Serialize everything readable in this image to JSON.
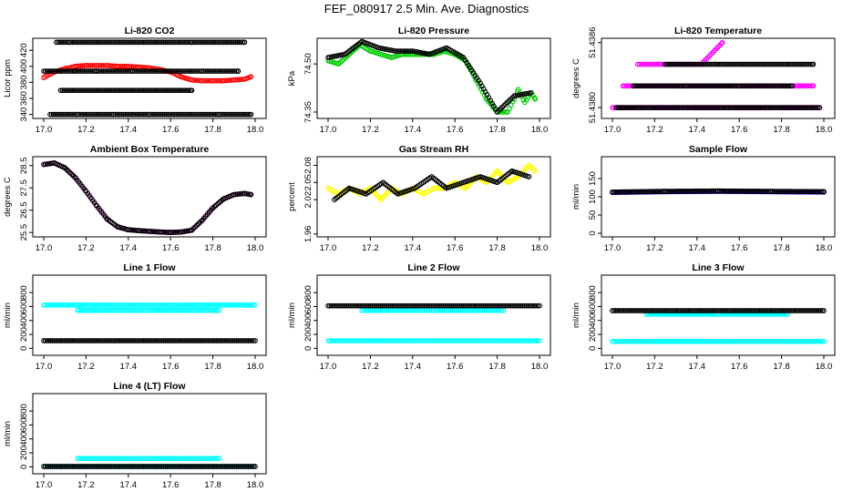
{
  "figure_title": "FEF_080917  2.5 Min. Ave. Diagnostics",
  "chart_data": [
    {
      "type": "scatter",
      "title": "Li-820 CO2",
      "ylabel": "Licor ppm",
      "xlim": [
        17.0,
        18.0
      ],
      "ylim": [
        335,
        435
      ],
      "xticks": [
        "17.0",
        "17.2",
        "17.4",
        "17.6",
        "17.8",
        "18.0"
      ],
      "yticks": [
        {
          "v": 340,
          "t": "340"
        },
        {
          "v": 360,
          "t": "360"
        },
        {
          "v": 380,
          "t": "380"
        },
        {
          "v": 400,
          "t": "400"
        },
        {
          "v": 420,
          "t": "420"
        }
      ],
      "series": [
        {
          "color": "#ff0000",
          "x": [
            17.0,
            17.05,
            17.1,
            17.15,
            17.2,
            17.25,
            17.3,
            17.35,
            17.4,
            17.45,
            17.5,
            17.55,
            17.6,
            17.65,
            17.7,
            17.75,
            17.8,
            17.85,
            17.9,
            17.95,
            17.98
          ],
          "y": [
            386,
            393,
            397,
            400,
            401,
            401,
            401,
            400,
            400,
            399,
            398,
            396,
            393,
            387,
            383,
            382,
            382,
            382,
            383,
            384,
            387
          ]
        },
        {
          "color": "#000000",
          "x": [
            17.06,
            17.12,
            17.2,
            17.28,
            17.36,
            17.44,
            17.52,
            17.6,
            17.7,
            17.78,
            17.86,
            17.95,
            17.03,
            17.16,
            17.33,
            17.5,
            17.66,
            17.83,
            17.98,
            17.0,
            17.15,
            17.25,
            17.42,
            17.58,
            17.75,
            17.92,
            17.08,
            17.4,
            17.7
          ],
          "y": [
            430,
            430,
            430,
            430,
            430,
            430,
            430,
            430,
            430,
            430,
            430,
            430,
            340,
            340,
            340,
            340,
            340,
            340,
            340,
            394,
            394,
            394,
            394,
            394,
            394,
            394,
            370,
            370,
            370
          ]
        }
      ]
    },
    {
      "type": "scatter",
      "title": "Li-820 Pressure",
      "ylabel": "kPa",
      "xlim": [
        17.0,
        18.0
      ],
      "ylim": [
        74.33,
        74.58
      ],
      "xticks": [
        "17.0",
        "17.2",
        "17.4",
        "17.6",
        "17.8",
        "18.0"
      ],
      "yticks": [
        {
          "v": 74.35,
          "t": "74.35"
        },
        {
          "v": 74.5,
          "t": "74.50"
        }
      ],
      "series": [
        {
          "color": "#00cc00",
          "x": [
            17.0,
            17.05,
            17.1,
            17.15,
            17.2,
            17.25,
            17.3,
            17.35,
            17.4,
            17.45,
            17.5,
            17.55,
            17.6,
            17.65,
            17.7,
            17.75,
            17.8,
            17.85,
            17.88,
            17.9,
            17.93,
            17.96,
            17.98
          ],
          "y": [
            74.51,
            74.5,
            74.53,
            74.56,
            74.54,
            74.53,
            74.52,
            74.53,
            74.53,
            74.53,
            74.53,
            74.54,
            74.53,
            74.51,
            74.45,
            74.39,
            74.35,
            74.35,
            74.39,
            74.42,
            74.38,
            74.41,
            74.39
          ]
        },
        {
          "color": "#000000",
          "x": [
            17.0,
            17.08,
            17.16,
            17.24,
            17.32,
            17.4,
            17.48,
            17.56,
            17.64,
            17.72,
            17.8,
            17.88,
            17.96
          ],
          "y": [
            74.52,
            74.53,
            74.57,
            74.55,
            74.54,
            74.54,
            74.53,
            74.55,
            74.52,
            74.44,
            74.35,
            74.4,
            74.41
          ]
        }
      ]
    },
    {
      "type": "scatter",
      "title": "Li-820 Temperature",
      "ylabel": "degrees C",
      "xlim": [
        17.0,
        18.0
      ],
      "ylim": [
        51.4379,
        51.43864
      ],
      "xticks": [
        "17.0",
        "17.2",
        "17.4",
        "17.6",
        "17.8",
        "18.0"
      ],
      "yticks": [
        {
          "v": 51.438,
          "t": "51.4380"
        },
        {
          "v": 51.4386,
          "t": "51.4386"
        }
      ],
      "series": [
        {
          "color": "#ff00ff",
          "x": [
            17.0,
            17.1,
            17.2,
            17.3,
            17.4,
            17.5,
            17.6,
            17.7,
            17.8,
            17.9,
            17.98,
            17.05,
            17.3,
            17.45,
            17.55,
            17.65,
            17.72,
            17.85,
            17.95,
            17.12,
            17.42,
            17.52
          ],
          "y": [
            51.438,
            51.438,
            51.438,
            51.438,
            51.438,
            51.438,
            51.438,
            51.438,
            51.438,
            51.438,
            51.438,
            51.4382,
            51.4382,
            51.4382,
            51.4382,
            51.4382,
            51.4382,
            51.4382,
            51.4382,
            51.4384,
            51.4384,
            51.4386
          ]
        },
        {
          "color": "#000000",
          "x": [
            17.02,
            17.14,
            17.26,
            17.38,
            17.5,
            17.62,
            17.74,
            17.86,
            17.98,
            17.1,
            17.35,
            17.6,
            17.85,
            17.25,
            17.95
          ],
          "y": [
            51.438,
            51.438,
            51.438,
            51.438,
            51.438,
            51.438,
            51.438,
            51.438,
            51.438,
            51.4382,
            51.4382,
            51.4382,
            51.4382,
            51.4384,
            51.4384
          ]
        }
      ]
    },
    {
      "type": "scatter",
      "title": "Ambient Box Temperature",
      "ylabel": "degrees C",
      "xlim": [
        17.0,
        18.0
      ],
      "ylim": [
        25.3,
        28.9
      ],
      "xticks": [
        "17.0",
        "17.2",
        "17.4",
        "17.6",
        "17.8",
        "18.0"
      ],
      "yticks": [
        {
          "v": 25.5,
          "t": "25.5"
        },
        {
          "v": 26.5,
          "t": "26.5"
        },
        {
          "v": 27.5,
          "t": "27.5"
        },
        {
          "v": 28.5,
          "t": "28.5"
        }
      ],
      "series": [
        {
          "color": "#ff00ff",
          "x": [
            17.0,
            17.05,
            17.1,
            17.15,
            17.2,
            17.25,
            17.3,
            17.35,
            17.4,
            17.45,
            17.5,
            17.55,
            17.6,
            17.65,
            17.7,
            17.75,
            17.8,
            17.85,
            17.9,
            17.95,
            17.98
          ],
          "y": [
            28.55,
            28.62,
            28.4,
            27.95,
            27.35,
            26.7,
            26.1,
            25.75,
            25.62,
            25.58,
            25.55,
            25.52,
            25.5,
            25.52,
            25.6,
            26.05,
            26.6,
            27.0,
            27.2,
            27.25,
            27.2
          ]
        },
        {
          "color": "#000000",
          "x": [
            17.0,
            17.05,
            17.1,
            17.15,
            17.2,
            17.25,
            17.3,
            17.35,
            17.4,
            17.45,
            17.5,
            17.55,
            17.6,
            17.65,
            17.7,
            17.75,
            17.8,
            17.85,
            17.9,
            17.95,
            17.98
          ],
          "y": [
            28.55,
            28.62,
            28.4,
            27.95,
            27.35,
            26.7,
            26.1,
            25.75,
            25.62,
            25.58,
            25.55,
            25.52,
            25.5,
            25.52,
            25.6,
            26.05,
            26.6,
            27.0,
            27.2,
            27.25,
            27.2
          ]
        }
      ]
    },
    {
      "type": "scatter",
      "title": "Gas Stream RH",
      "ylabel": "percent",
      "xlim": [
        17.0,
        18.0
      ],
      "ylim": [
        1.955,
        2.095
      ],
      "xticks": [
        "17.0",
        "17.2",
        "17.4",
        "17.6",
        "17.8",
        "18.0"
      ],
      "yticks": [
        {
          "v": 1.96,
          "t": "1.96"
        },
        {
          "v": 2.02,
          "t": "2.02"
        },
        {
          "v": 2.05,
          "t": "2.05"
        },
        {
          "v": 2.08,
          "t": "2.08"
        }
      ],
      "series": [
        {
          "color": "#ffff00",
          "x": [
            17.0,
            17.05,
            17.1,
            17.15,
            17.2,
            17.25,
            17.3,
            17.35,
            17.4,
            17.45,
            17.5,
            17.55,
            17.6,
            17.65,
            17.7,
            17.75,
            17.8,
            17.85,
            17.9,
            17.95,
            17.98
          ],
          "y": [
            2.04,
            2.03,
            2.04,
            2.03,
            2.04,
            2.02,
            2.04,
            2.03,
            2.04,
            2.03,
            2.04,
            2.04,
            2.05,
            2.04,
            2.06,
            2.05,
            2.07,
            2.05,
            2.06,
            2.08,
            2.07
          ]
        },
        {
          "color": "#000000",
          "x": [
            17.03,
            17.1,
            17.18,
            17.26,
            17.33,
            17.41,
            17.49,
            17.56,
            17.64,
            17.72,
            17.8,
            17.87,
            17.95
          ],
          "y": [
            2.02,
            2.04,
            2.03,
            2.05,
            2.03,
            2.04,
            2.06,
            2.04,
            2.05,
            2.06,
            2.05,
            2.07,
            2.06
          ]
        }
      ]
    },
    {
      "type": "scatter",
      "title": "Sample Flow",
      "ylabel": "ml/min",
      "xlim": [
        17.0,
        18.0
      ],
      "ylim": [
        -10,
        210
      ],
      "xticks": [
        "17.0",
        "17.2",
        "17.4",
        "17.6",
        "17.8",
        "18.0"
      ],
      "yticks": [
        {
          "v": 0,
          "t": "0"
        },
        {
          "v": 50,
          "t": "50"
        },
        {
          "v": 100,
          "t": "100"
        },
        {
          "v": 150,
          "t": "150"
        }
      ],
      "series": [
        {
          "color": "#0000ff",
          "x": [
            17.0,
            17.25,
            17.5,
            17.75,
            18.0
          ],
          "y": [
            112,
            114,
            115,
            114,
            113
          ]
        },
        {
          "color": "#000000",
          "x": [
            17.0,
            17.25,
            17.5,
            17.75,
            18.0
          ],
          "y": [
            113,
            115,
            116,
            115,
            114
          ]
        }
      ]
    },
    {
      "type": "scatter",
      "title": "Line 1 Flow",
      "ylabel": "ml/min",
      "xlim": [
        17.0,
        18.0
      ],
      "ylim": [
        -100,
        1050
      ],
      "xticks": [
        "17.0",
        "17.2",
        "17.4",
        "17.6",
        "17.8",
        "18.0"
      ],
      "yticks": [
        {
          "v": 0,
          "t": "0"
        },
        {
          "v": 200,
          "t": "200"
        },
        {
          "v": 400,
          "t": "400"
        },
        {
          "v": 600,
          "t": "600"
        },
        {
          "v": 800,
          "t": "800"
        }
      ],
      "series": [
        {
          "color": "#00ffff",
          "x": [
            17.0,
            18.0,
            17.16,
            17.5,
            17.83
          ],
          "y": [
            620,
            620,
            545,
            545,
            545
          ]
        },
        {
          "color": "#000000",
          "x": [
            17.0,
            18.0
          ],
          "y": [
            110,
            110
          ]
        }
      ]
    },
    {
      "type": "scatter",
      "title": "Line 2 Flow",
      "ylabel": "ml/min",
      "xlim": [
        17.0,
        18.0
      ],
      "ylim": [
        -100,
        1050
      ],
      "xticks": [
        "17.0",
        "17.2",
        "17.4",
        "17.6",
        "17.8",
        "18.0"
      ],
      "yticks": [
        {
          "v": 0,
          "t": "0"
        },
        {
          "v": 200,
          "t": "200"
        },
        {
          "v": 400,
          "t": "400"
        },
        {
          "v": 600,
          "t": "600"
        },
        {
          "v": 800,
          "t": "800"
        }
      ],
      "series": [
        {
          "color": "#00ffff",
          "x": [
            17.0,
            18.0,
            17.16,
            17.5,
            17.83
          ],
          "y": [
            110,
            110,
            545,
            545,
            545
          ]
        },
        {
          "color": "#000000",
          "x": [
            17.0,
            18.0
          ],
          "y": [
            610,
            610
          ]
        }
      ]
    },
    {
      "type": "scatter",
      "title": "Line 3 Flow",
      "ylabel": "ml/min",
      "xlim": [
        17.0,
        18.0
      ],
      "ylim": [
        -100,
        1050
      ],
      "xticks": [
        "17.0",
        "17.2",
        "17.4",
        "17.6",
        "17.8",
        "18.0"
      ],
      "yticks": [
        {
          "v": 0,
          "t": "0"
        },
        {
          "v": 200,
          "t": "200"
        },
        {
          "v": 400,
          "t": "400"
        },
        {
          "v": 600,
          "t": "600"
        },
        {
          "v": 800,
          "t": "800"
        }
      ],
      "series": [
        {
          "color": "#00ffff",
          "x": [
            17.0,
            18.0,
            17.16,
            17.5,
            17.83
          ],
          "y": [
            100,
            100,
            490,
            490,
            490
          ]
        },
        {
          "color": "#000000",
          "x": [
            17.0,
            18.0
          ],
          "y": [
            540,
            540
          ]
        }
      ]
    },
    {
      "type": "scatter",
      "title": "Line 4 (LT) Flow",
      "ylabel": "ml/min",
      "xlim": [
        17.0,
        18.0
      ],
      "ylim": [
        -100,
        1050
      ],
      "xticks": [
        "17.0",
        "17.2",
        "17.4",
        "17.6",
        "17.8",
        "18.0"
      ],
      "yticks": [
        {
          "v": 0,
          "t": "0"
        },
        {
          "v": 200,
          "t": "200"
        },
        {
          "v": 400,
          "t": "400"
        },
        {
          "v": 600,
          "t": "600"
        },
        {
          "v": 800,
          "t": "800"
        }
      ],
      "series": [
        {
          "color": "#00ffff",
          "x": [
            17.0,
            18.0,
            17.16,
            17.5,
            17.83
          ],
          "y": [
            5,
            5,
            120,
            120,
            120
          ]
        },
        {
          "color": "#000000",
          "x": [
            17.0,
            18.0
          ],
          "y": [
            5,
            5
          ]
        }
      ]
    }
  ]
}
